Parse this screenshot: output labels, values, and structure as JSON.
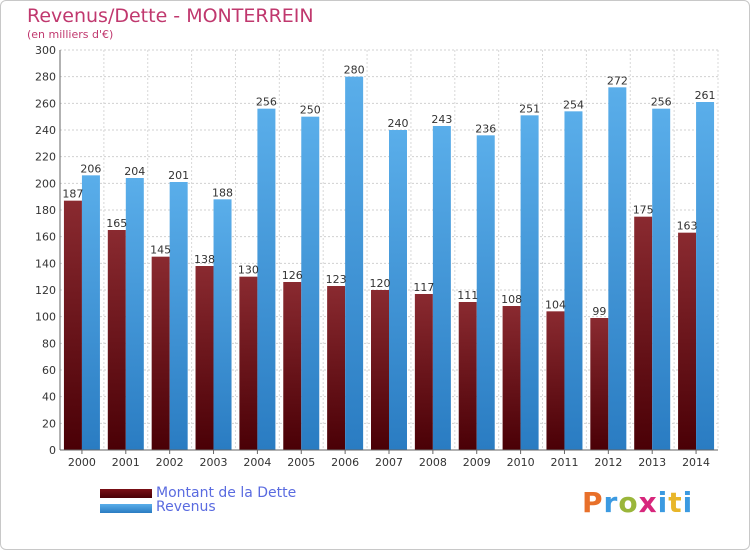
{
  "header": {
    "title": "Revenus/Dette - MONTERREIN",
    "subtitle": "(en milliers d'€)"
  },
  "legend": {
    "items": [
      {
        "label": "Montant de la Dette",
        "color": "#7a0f16"
      },
      {
        "label": "Revenus",
        "color": "#3b9ae1"
      }
    ]
  },
  "logo": {
    "text": "Proxiti",
    "letter_colors": [
      "#e8702a",
      "#3b9ae1",
      "#9ab63a",
      "#d7267c",
      "#3b9ae1",
      "#e8b62a",
      "#3b9ae1"
    ]
  },
  "chart_data": {
    "type": "bar",
    "title": "Revenus/Dette - MONTERREIN",
    "subtitle": "(en milliers d'€)",
    "categories": [
      "2000",
      "2001",
      "2002",
      "2003",
      "2004",
      "2005",
      "2006",
      "2007",
      "2008",
      "2009",
      "2010",
      "2011",
      "2012",
      "2013",
      "2014"
    ],
    "series": [
      {
        "name": "Montant de la Dette",
        "color": "#7a0f16",
        "values": [
          187,
          165,
          145,
          138,
          130,
          126,
          123,
          120,
          117,
          111,
          108,
          104,
          99,
          175,
          163
        ]
      },
      {
        "name": "Revenus",
        "color": "#3b9ae1",
        "values": [
          206,
          204,
          201,
          188,
          256,
          250,
          280,
          240,
          243,
          236,
          251,
          254,
          272,
          256,
          261
        ]
      }
    ],
    "ylim": [
      0,
      300
    ],
    "ytick_step": 20,
    "grid": true,
    "legend_position": "bottom-left"
  }
}
